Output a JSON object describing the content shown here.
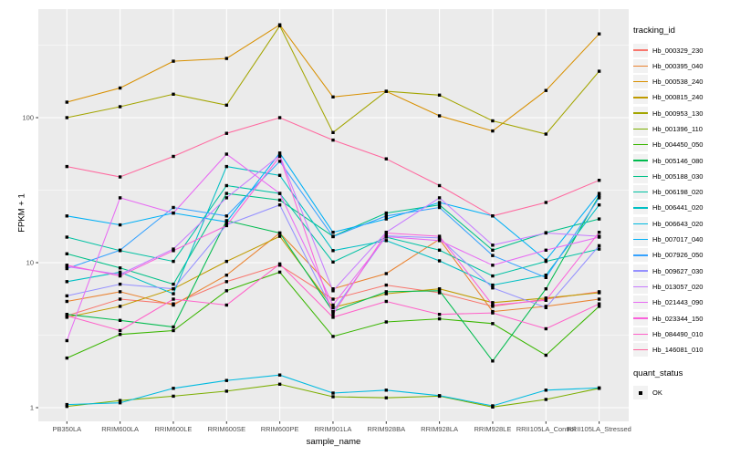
{
  "figure": {
    "background": "#FFFFFF",
    "panel_background": "#EBEBEB",
    "grid_color": "#FFFFFF",
    "tick_color": "#333333",
    "tick_label_color": "#4D4D4D",
    "point_color": "#000000"
  },
  "axes": {
    "x_title": "sample_name",
    "y_title": "FPKM + 1",
    "y_scale": "log10",
    "y_tick_labels": [
      "1",
      "10",
      "100"
    ]
  },
  "legend": {
    "color_title": "tracking_id",
    "shape_title": "quant_status",
    "shape_items": [
      {
        "label": "OK",
        "marker": "black-square"
      }
    ]
  },
  "chart_data": {
    "type": "line",
    "title": "",
    "xlabel": "sample_name",
    "ylabel": "FPKM + 1",
    "yscale": "log10",
    "ylim": [
      1,
      600
    ],
    "y_ticks": [
      1,
      10,
      100
    ],
    "grid": true,
    "legend_position": "right",
    "point_marker": {
      "shape": "square",
      "color": "#000000",
      "meaning": "quant_status OK"
    },
    "categories": [
      "PB350LA",
      "RRIM600LA",
      "RRIM600LE",
      "RRIM600SE",
      "RRIM600PE",
      "RRIM901LA",
      "RRIM928BA",
      "RRIM928LA",
      "RRIM928LE",
      "RRII105LA_Control",
      "RRII105LA_Stressed"
    ],
    "series": [
      {
        "name": "Hb_000329_230",
        "color": "#F8766D",
        "values": [
          4.3,
          5.6,
          5.2,
          7.4,
          9.6,
          5.6,
          7.0,
          6.2,
          5.0,
          5.6,
          6.3
        ]
      },
      {
        "name": "Hb_000395_040",
        "color": "#EA8331",
        "values": [
          5.4,
          6.3,
          5.1,
          8.2,
          16.0,
          6.6,
          8.4,
          14.5,
          4.6,
          5.0,
          5.6
        ]
      },
      {
        "name": "Hb_000538_240",
        "color": "#D89000",
        "values": [
          128,
          160,
          245,
          256,
          437,
          139,
          152,
          103,
          81,
          154,
          378
        ]
      },
      {
        "name": "Hb_000815_240",
        "color": "#C09B00",
        "values": [
          4.2,
          5.0,
          6.6,
          10.2,
          15.2,
          4.9,
          6.1,
          6.6,
          5.3,
          5.7,
          6.2
        ]
      },
      {
        "name": "Hb_000953_130",
        "color": "#A3A500",
        "values": [
          100,
          119,
          145,
          122,
          430,
          79,
          152,
          143,
          95,
          77,
          209
        ]
      },
      {
        "name": "Hb_001396_110",
        "color": "#7CAE00",
        "values": [
          1.02,
          1.12,
          1.2,
          1.3,
          1.45,
          1.19,
          1.17,
          1.2,
          1.01,
          1.14,
          1.36
        ]
      },
      {
        "name": "Hb_004450_050",
        "color": "#39B600",
        "values": [
          2.2,
          3.2,
          3.4,
          6.4,
          8.6,
          3.1,
          3.9,
          4.1,
          3.8,
          2.3,
          5.0
        ]
      },
      {
        "name": "Hb_005146_080",
        "color": "#00BB4E",
        "values": [
          4.4,
          4.0,
          3.6,
          19.5,
          16.0,
          4.6,
          6.3,
          6.4,
          2.1,
          6.6,
          29
        ]
      },
      {
        "name": "Hb_005188_030",
        "color": "#00C087",
        "values": [
          11.5,
          9.2,
          7.1,
          30,
          27,
          15.2,
          22,
          25,
          12.2,
          16.1,
          20
        ]
      },
      {
        "name": "Hb_006198_020",
        "color": "#00C1A3",
        "values": [
          15.0,
          12.1,
          10.2,
          34,
          30,
          10.1,
          15.0,
          12.2,
          8.1,
          10.2,
          12.4
        ]
      },
      {
        "name": "Hb_006441_020",
        "color": "#00BFC4",
        "values": [
          7.4,
          8.6,
          6.1,
          46,
          40,
          12.1,
          14.2,
          10.3,
          7.0,
          8.2,
          25
        ]
      },
      {
        "name": "Hb_006643_020",
        "color": "#00BAE0",
        "values": [
          1.05,
          1.08,
          1.36,
          1.54,
          1.68,
          1.26,
          1.32,
          1.21,
          1.03,
          1.32,
          1.37
        ]
      },
      {
        "name": "Hb_007017_040",
        "color": "#00B0F6",
        "values": [
          21,
          18.2,
          22,
          19.1,
          57,
          16.2,
          20,
          26,
          21,
          10.4,
          30
        ]
      },
      {
        "name": "Hb_007926_050",
        "color": "#35A2FF",
        "values": [
          9.1,
          12.2,
          24,
          21,
          50,
          15.1,
          21,
          24,
          11.2,
          7.9,
          28
        ]
      },
      {
        "name": "Hb_009627_030",
        "color": "#9590FF",
        "values": [
          5.9,
          7.1,
          6.6,
          18.2,
          25,
          4.6,
          15.3,
          14.8,
          6.7,
          4.9,
          13.1
        ]
      },
      {
        "name": "Hb_013057_020",
        "color": "#C77CFF",
        "values": [
          9.4,
          8.3,
          12.4,
          28,
          55,
          6.4,
          16.2,
          28,
          13.2,
          16.0,
          15.2
        ]
      },
      {
        "name": "Hb_021443_090",
        "color": "#E76BF3",
        "values": [
          2.9,
          28,
          22,
          56,
          30,
          5.1,
          15.1,
          14.2,
          9.6,
          12.2,
          15.0
        ]
      },
      {
        "name": "Hb_023344_150",
        "color": "#FA62DB",
        "values": [
          9.6,
          8.1,
          12.1,
          18.0,
          54,
          4.4,
          16.0,
          15.2,
          5.1,
          5.5,
          16.2
        ]
      },
      {
        "name": "Hb_084490_010",
        "color": "#FF61C9",
        "values": [
          4.3,
          3.4,
          5.6,
          5.1,
          9.8,
          4.2,
          5.4,
          4.4,
          4.5,
          3.5,
          5.2
        ]
      },
      {
        "name": "Hb_146081_010",
        "color": "#FF689F",
        "values": [
          46,
          39,
          54,
          78,
          100,
          70,
          52,
          34,
          21,
          26,
          37
        ]
      }
    ]
  }
}
